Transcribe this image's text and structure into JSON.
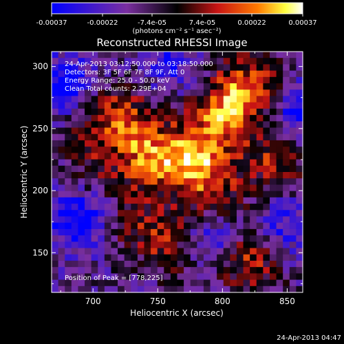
{
  "colorbar": {
    "tick_labels": [
      "-0.00037",
      "-0.00022",
      "-7.4e-05",
      "7.4e-05",
      "0.00022",
      "0.00037"
    ],
    "tick_values": [
      -0.00037,
      -0.00022,
      -7.4e-05,
      7.4e-05,
      0.00022,
      0.00037
    ],
    "range": [
      -0.00037,
      0.00037
    ],
    "units_label": "(photons cm⁻² s⁻¹ asec⁻²)",
    "colors": [
      "#0000ff",
      "#7a2fa0",
      "#000000",
      "#c81414",
      "#ff7a00",
      "#ffff40",
      "#ffffff"
    ]
  },
  "title": "Reconstructed RHESSI Image",
  "info": {
    "line1": "24-Apr-2013 03:12:50.000 to 03:18:50.000",
    "line2": "Detectors: 3F 5F 6F 7F 8F 9F, Att 0",
    "line3": "Energy Range: 25.0 - 50.0 keV",
    "line4": "Clean     Total counts: 2.29E+04"
  },
  "peak_label": "Position of Peak = [778,225]",
  "timestamp": "24-Apr-2013 04:47",
  "chart_data": {
    "type": "heatmap",
    "title": "Reconstructed RHESSI Image",
    "xlabel": "Heliocentric X (arcsec)",
    "ylabel": "Heliocentric Y (arcsec)",
    "xlim": [
      668,
      862
    ],
    "ylim": [
      118,
      312
    ],
    "x_ticks": [
      700,
      750,
      800,
      850
    ],
    "y_ticks": [
      150,
      200,
      250,
      300
    ],
    "x_tick_labels": [
      "700",
      "750",
      "800",
      "850"
    ],
    "y_tick_labels": [
      "150",
      "200",
      "250",
      "300"
    ],
    "value_range": [
      -0.00037,
      0.00037
    ],
    "peak_position": [
      778,
      225
    ],
    "grid": false,
    "sources": [
      {
        "x": 778,
        "y": 225,
        "peak": 0.00037
      },
      {
        "x": 800,
        "y": 262,
        "peak": 0.0003
      },
      {
        "x": 820,
        "y": 285,
        "peak": 0.00026
      },
      {
        "x": 745,
        "y": 222,
        "peak": 0.00024
      },
      {
        "x": 730,
        "y": 252,
        "peak": 0.00022
      },
      {
        "x": 760,
        "y": 160,
        "peak": 0.00022
      },
      {
        "x": 820,
        "y": 145,
        "peak": 0.00024
      },
      {
        "x": 840,
        "y": 225,
        "peak": 0.0002
      },
      {
        "x": 705,
        "y": 262,
        "peak": 0.00016
      },
      {
        "x": 795,
        "y": 195,
        "peak": 0.00016
      },
      {
        "x": 725,
        "y": 175,
        "peak": 0.00012
      },
      {
        "x": 700,
        "y": 220,
        "peak": 0.0001
      }
    ],
    "negative_regions": [
      {
        "x": 680,
        "y": 285,
        "value": -0.0003
      },
      {
        "x": 690,
        "y": 175,
        "value": -0.00032
      },
      {
        "x": 860,
        "y": 265,
        "value": -0.00024
      },
      {
        "x": 790,
        "y": 160,
        "value": -0.00024
      },
      {
        "x": 760,
        "y": 300,
        "value": -0.00018
      },
      {
        "x": 850,
        "y": 170,
        "value": -0.0002
      }
    ]
  }
}
